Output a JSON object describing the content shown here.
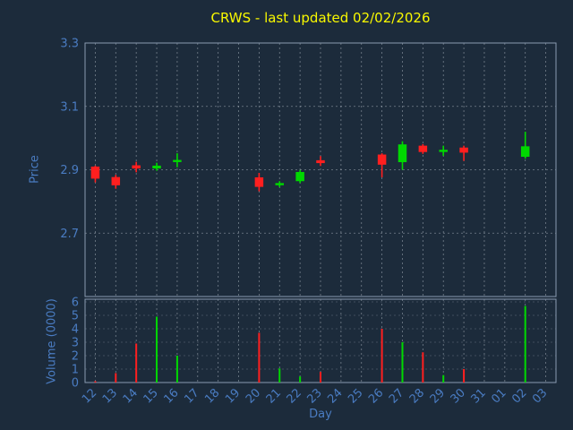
{
  "header": {
    "title": "CRWS - last updated 02/02/2026"
  },
  "colors": {
    "background": "#1c2b3b",
    "grid": "#cdd5dd",
    "spine": "#8a9bb0",
    "tick_label": "#4a7cc2",
    "title": "#f9f900",
    "up": "#00d800",
    "down": "#ff1f1f"
  },
  "chart_data": [
    {
      "type": "candlestick",
      "title": "CRWS - last updated 02/02/2026",
      "ylabel": "Price",
      "ylim": [
        2.5,
        3.3
      ],
      "yticks": [
        2.7,
        2.9,
        3.1,
        3.3
      ],
      "grid": true,
      "categories": [
        "12",
        "13",
        "14",
        "15",
        "16",
        "17",
        "18",
        "19",
        "20",
        "21",
        "22",
        "23",
        "24",
        "25",
        "26",
        "27",
        "28",
        "29",
        "30",
        "31",
        "01",
        "02",
        "03"
      ],
      "candles": [
        {
          "day": "12",
          "open": 2.91,
          "high": 2.913,
          "low": 2.86,
          "close": 2.872,
          "direction": "down"
        },
        {
          "day": "13",
          "open": 2.877,
          "high": 2.884,
          "low": 2.84,
          "close": 2.851,
          "direction": "down"
        },
        {
          "day": "14",
          "open": 2.914,
          "high": 2.925,
          "low": 2.892,
          "close": 2.904,
          "direction": "down"
        },
        {
          "day": "15",
          "open": 2.904,
          "high": 2.922,
          "low": 2.897,
          "close": 2.913,
          "direction": "up"
        },
        {
          "day": "16",
          "open": 2.928,
          "high": 2.952,
          "low": 2.908,
          "close": 2.931,
          "direction": "up"
        },
        {
          "day": "17",
          "open": null,
          "high": null,
          "low": null,
          "close": null,
          "direction": null
        },
        {
          "day": "18",
          "open": null,
          "high": null,
          "low": null,
          "close": null,
          "direction": null
        },
        {
          "day": "19",
          "open": null,
          "high": null,
          "low": null,
          "close": null,
          "direction": null
        },
        {
          "day": "20",
          "open": 2.876,
          "high": 2.89,
          "low": 2.832,
          "close": 2.846,
          "direction": "down"
        },
        {
          "day": "21",
          "open": 2.853,
          "high": 2.864,
          "low": 2.845,
          "close": 2.858,
          "direction": "up"
        },
        {
          "day": "22",
          "open": 2.864,
          "high": 2.899,
          "low": 2.858,
          "close": 2.893,
          "direction": "up"
        },
        {
          "day": "23",
          "open": 2.93,
          "high": 2.943,
          "low": 2.912,
          "close": 2.921,
          "direction": "down"
        },
        {
          "day": "24",
          "open": null,
          "high": null,
          "low": null,
          "close": null,
          "direction": null
        },
        {
          "day": "25",
          "open": null,
          "high": null,
          "low": null,
          "close": null,
          "direction": null
        },
        {
          "day": "26",
          "open": 2.948,
          "high": 2.952,
          "low": 2.876,
          "close": 2.916,
          "direction": "down"
        },
        {
          "day": "27",
          "open": 2.924,
          "high": 2.99,
          "low": 2.9,
          "close": 2.98,
          "direction": "up"
        },
        {
          "day": "28",
          "open": 2.976,
          "high": 2.981,
          "low": 2.95,
          "close": 2.956,
          "direction": "down"
        },
        {
          "day": "29",
          "open": 2.958,
          "high": 2.976,
          "low": 2.944,
          "close": 2.963,
          "direction": "up"
        },
        {
          "day": "30",
          "open": 2.97,
          "high": 2.976,
          "low": 2.928,
          "close": 2.954,
          "direction": "down"
        },
        {
          "day": "31",
          "open": null,
          "high": null,
          "low": null,
          "close": null,
          "direction": null
        },
        {
          "day": "01",
          "open": null,
          "high": null,
          "low": null,
          "close": null,
          "direction": null
        },
        {
          "day": "02",
          "open": 2.941,
          "high": 3.02,
          "low": 2.935,
          "close": 2.974,
          "direction": "up"
        },
        {
          "day": "03",
          "open": null,
          "high": null,
          "low": null,
          "close": null,
          "direction": null
        }
      ]
    },
    {
      "type": "bar",
      "ylabel": "Volume (0000)",
      "xlabel": "Day",
      "ylim": [
        0,
        6
      ],
      "yticks": [
        0,
        1,
        2,
        3,
        4,
        5,
        6
      ],
      "grid": true,
      "categories": [
        "12",
        "13",
        "14",
        "15",
        "16",
        "17",
        "18",
        "19",
        "20",
        "21",
        "22",
        "23",
        "24",
        "25",
        "26",
        "27",
        "28",
        "29",
        "30",
        "31",
        "01",
        "02",
        "03"
      ],
      "values": [
        0.1,
        0.7,
        2.9,
        4.9,
        2.0,
        0,
        0,
        0,
        3.7,
        1.05,
        0.45,
        0.8,
        0,
        0,
        4.0,
        3.0,
        2.25,
        0.55,
        1.0,
        0,
        0,
        5.7,
        0
      ]
    }
  ]
}
